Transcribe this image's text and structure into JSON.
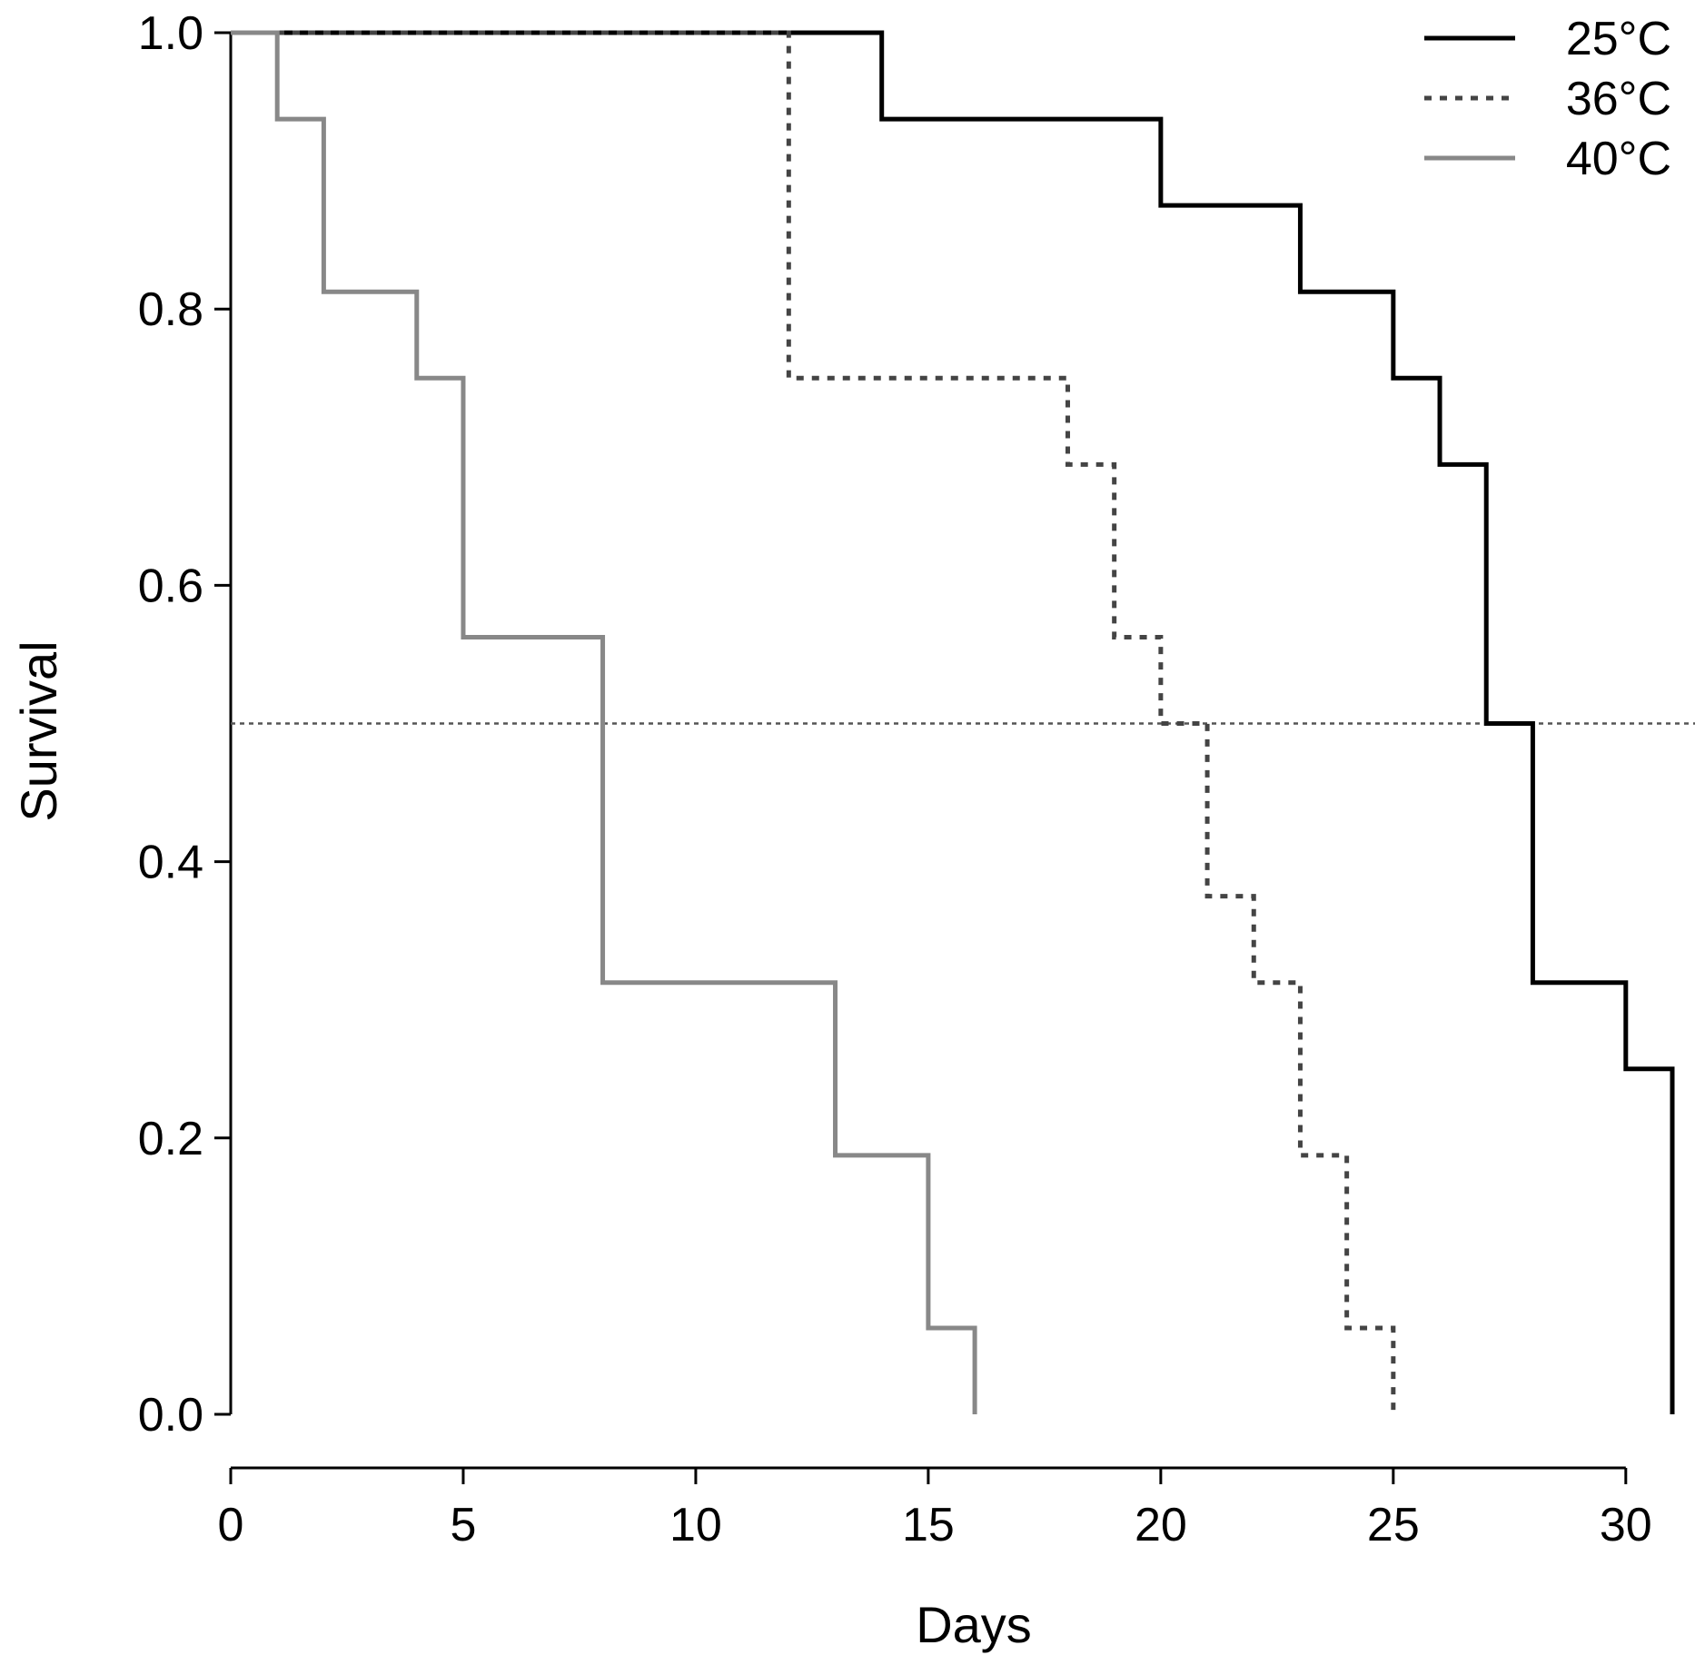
{
  "chart_data": {
    "type": "line",
    "subtype": "kaplan-meier step survival curves",
    "title": "",
    "xlabel": "Days",
    "ylabel": "Survival",
    "xlim": [
      0,
      31
    ],
    "ylim": [
      0,
      1
    ],
    "x_ticks": [
      0,
      5,
      10,
      15,
      20,
      25,
      30
    ],
    "y_ticks": [
      0.0,
      0.2,
      0.4,
      0.6,
      0.8,
      1.0
    ],
    "x_tick_labels": [
      "0",
      "5",
      "10",
      "15",
      "20",
      "25",
      "30"
    ],
    "y_tick_labels": [
      "0.0",
      "0.2",
      "0.4",
      "0.6",
      "0.8",
      "1.0"
    ],
    "reference_line": {
      "y": 0.5,
      "style": "dotted"
    },
    "legend_position": "top-right",
    "series": [
      {
        "name": "25°C",
        "color": "#000000",
        "style": "solid",
        "x": [
          0,
          14,
          20,
          23,
          25,
          26,
          27,
          28,
          30,
          31
        ],
        "y": [
          1.0,
          0.9375,
          0.875,
          0.8125,
          0.75,
          0.6875,
          0.5,
          0.3125,
          0.25,
          0.0
        ]
      },
      {
        "name": "36°C",
        "color": "#444444",
        "style": "dotted",
        "x": [
          0,
          12,
          18,
          19,
          20,
          21,
          22,
          23,
          24,
          25
        ],
        "y": [
          1.0,
          0.75,
          0.6875,
          0.5625,
          0.5,
          0.375,
          0.3125,
          0.1875,
          0.0625,
          0.0
        ]
      },
      {
        "name": "40°C",
        "color": "#888888",
        "style": "solid",
        "x": [
          0,
          1,
          2,
          4,
          5,
          8,
          13,
          15,
          16
        ],
        "y": [
          1.0,
          0.9375,
          0.8125,
          0.75,
          0.5625,
          0.3125,
          0.1875,
          0.0625,
          0.0
        ]
      }
    ]
  }
}
